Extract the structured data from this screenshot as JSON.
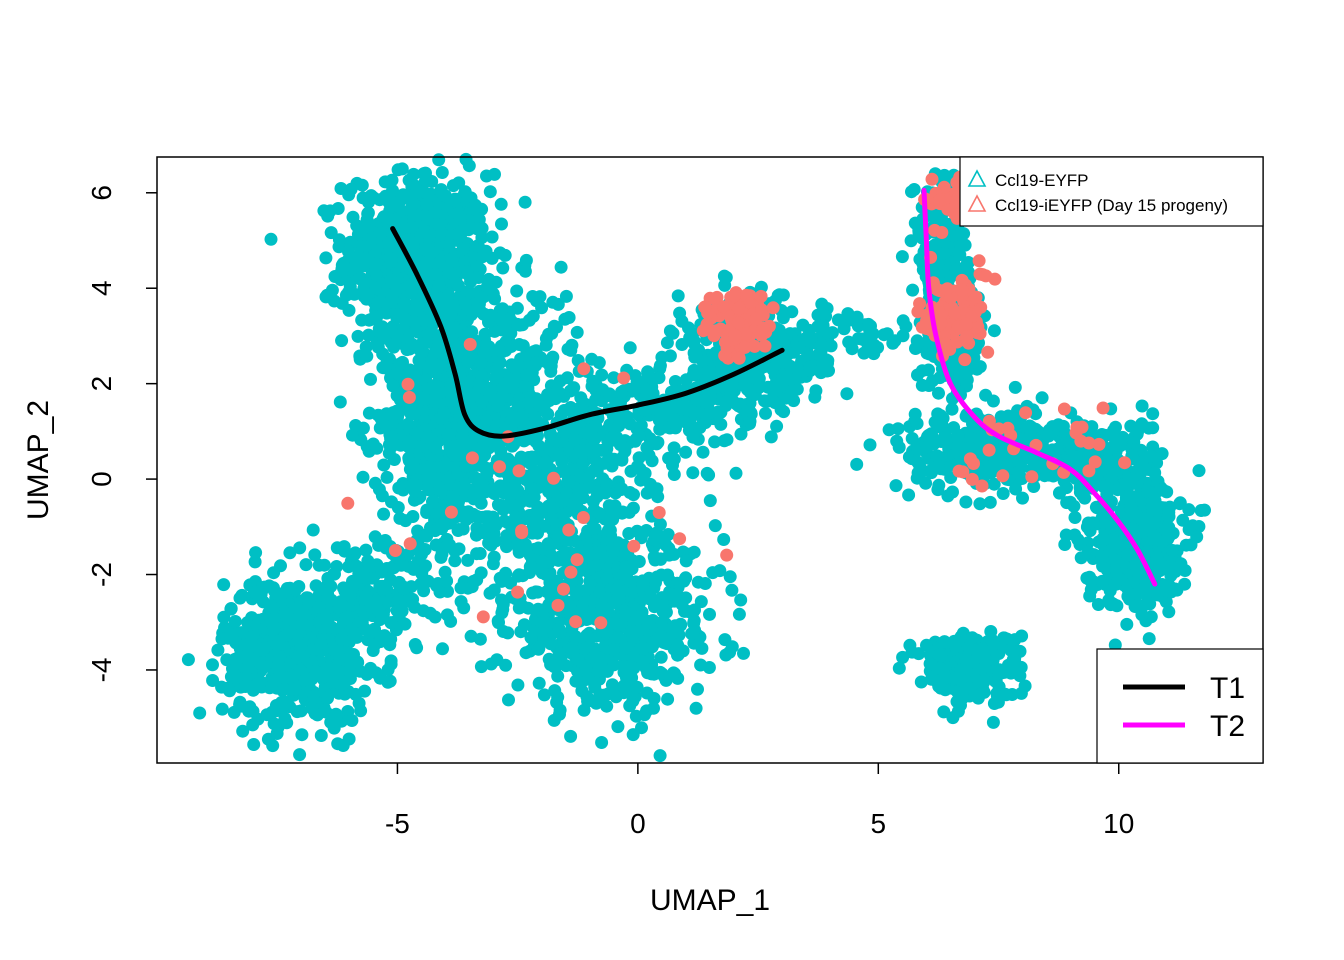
{
  "chart_data": {
    "type": "scatter",
    "title": "",
    "xlabel": "UMAP_1",
    "ylabel": "UMAP_2",
    "xlim": [
      -10,
      13
    ],
    "ylim": [
      -5.95,
      6.75
    ],
    "x_ticks": [
      -5,
      0,
      5,
      10
    ],
    "y_ticks": [
      -4,
      -2,
      0,
      2,
      4,
      6
    ],
    "grid": false,
    "colors": {
      "eyfp": "#00BFC4",
      "ieyfp": "#F8766D",
      "T1": "#000000",
      "T2": "#FF00FF"
    },
    "point_legend": {
      "placement": "top-right",
      "entries": [
        {
          "label": "Ccl19-EYFP",
          "color": "#00BFC4",
          "symbol": "triangle"
        },
        {
          "label": "Ccl19-iEYFP (Day 15 progeny)",
          "color": "#F8766D",
          "symbol": "triangle"
        }
      ]
    },
    "line_legend": {
      "placement": "bottom-right",
      "entries": [
        {
          "label": "T1",
          "color": "#000000"
        },
        {
          "label": "T2",
          "color": "#FF00FF"
        }
      ]
    },
    "clusters": [
      {
        "group": "eyfp",
        "cx": -4.6,
        "cy": 4.6,
        "sx": 0.75,
        "sy": 0.9,
        "n": 700
      },
      {
        "group": "eyfp",
        "cx": -4.0,
        "cy": 1.3,
        "sx": 0.7,
        "sy": 1.3,
        "n": 700
      },
      {
        "group": "eyfp",
        "cx": -2.8,
        "cy": 2.2,
        "sx": 0.8,
        "sy": 0.9,
        "n": 300
      },
      {
        "group": "eyfp",
        "cx": -7.1,
        "cy": -3.6,
        "sx": 0.75,
        "sy": 0.75,
        "n": 600
      },
      {
        "group": "eyfp",
        "cx": -5.5,
        "cy": -2.5,
        "sx": 0.8,
        "sy": 0.6,
        "n": 200
      },
      {
        "group": "eyfp",
        "cx": -0.5,
        "cy": -3.0,
        "sx": 1.1,
        "sy": 0.9,
        "n": 600
      },
      {
        "group": "eyfp",
        "cx": -2.0,
        "cy": -0.8,
        "sx": 0.9,
        "sy": 0.9,
        "n": 300
      },
      {
        "group": "eyfp",
        "cx": -1.0,
        "cy": 0.8,
        "sx": 1.2,
        "sy": 0.6,
        "n": 200
      },
      {
        "group": "eyfp",
        "cx": 0.8,
        "cy": 1.5,
        "sx": 0.8,
        "sy": 0.4,
        "n": 120
      },
      {
        "group": "eyfp",
        "cx": 2.3,
        "cy": 2.6,
        "sx": 0.8,
        "sy": 0.6,
        "n": 350
      },
      {
        "group": "eyfp",
        "cx": 4.6,
        "cy": 2.9,
        "sx": 0.6,
        "sy": 0.3,
        "n": 40
      },
      {
        "group": "eyfp",
        "cx": 6.3,
        "cy": 4.9,
        "sx": 0.3,
        "sy": 0.8,
        "n": 150
      },
      {
        "group": "eyfp",
        "cx": 6.6,
        "cy": 3.0,
        "sx": 0.35,
        "sy": 0.6,
        "n": 150
      },
      {
        "group": "eyfp",
        "cx": 7.2,
        "cy": 0.6,
        "sx": 0.9,
        "sy": 0.4,
        "n": 300
      },
      {
        "group": "eyfp",
        "cx": 9.3,
        "cy": 0.5,
        "sx": 0.7,
        "sy": 0.4,
        "n": 250
      },
      {
        "group": "eyfp",
        "cx": 10.3,
        "cy": -1.2,
        "sx": 0.5,
        "sy": 0.75,
        "n": 450
      },
      {
        "group": "eyfp",
        "cx": 6.9,
        "cy": -3.9,
        "sx": 0.5,
        "sy": 0.35,
        "n": 300
      },
      {
        "group": "ieyfp",
        "cx": 2.1,
        "cy": 3.2,
        "sx": 0.35,
        "sy": 0.35,
        "n": 90
      },
      {
        "group": "ieyfp",
        "cx": 6.4,
        "cy": 5.8,
        "sx": 0.25,
        "sy": 0.3,
        "n": 35
      },
      {
        "group": "ieyfp",
        "cx": 6.6,
        "cy": 3.5,
        "sx": 0.35,
        "sy": 0.45,
        "n": 90
      },
      {
        "group": "ieyfp",
        "cx": 8.5,
        "cy": 0.6,
        "sx": 1.0,
        "sy": 0.6,
        "n": 30
      },
      {
        "group": "ieyfp",
        "cx": -1.5,
        "cy": -1.0,
        "sx": 2.2,
        "sy": 2.0,
        "n": 30
      }
    ],
    "series": [
      {
        "name": "T1",
        "x": [
          -5.1,
          -4.6,
          -4.1,
          -3.8,
          -3.6,
          -3.3,
          -2.8,
          -2.0,
          -1.0,
          0.0,
          1.0,
          2.0,
          3.0
        ],
        "y": [
          5.25,
          4.3,
          3.2,
          2.2,
          1.35,
          1.0,
          0.9,
          1.05,
          1.35,
          1.55,
          1.8,
          2.2,
          2.7
        ]
      },
      {
        "name": "T2",
        "x": [
          5.95,
          6.0,
          6.05,
          6.2,
          6.5,
          7.0,
          7.5,
          8.3,
          9.0,
          9.5,
          10.0,
          10.4,
          10.75
        ],
        "y": [
          6.05,
          5.0,
          4.0,
          3.0,
          2.0,
          1.3,
          0.9,
          0.55,
          0.2,
          -0.3,
          -0.9,
          -1.5,
          -2.2
        ]
      }
    ]
  }
}
